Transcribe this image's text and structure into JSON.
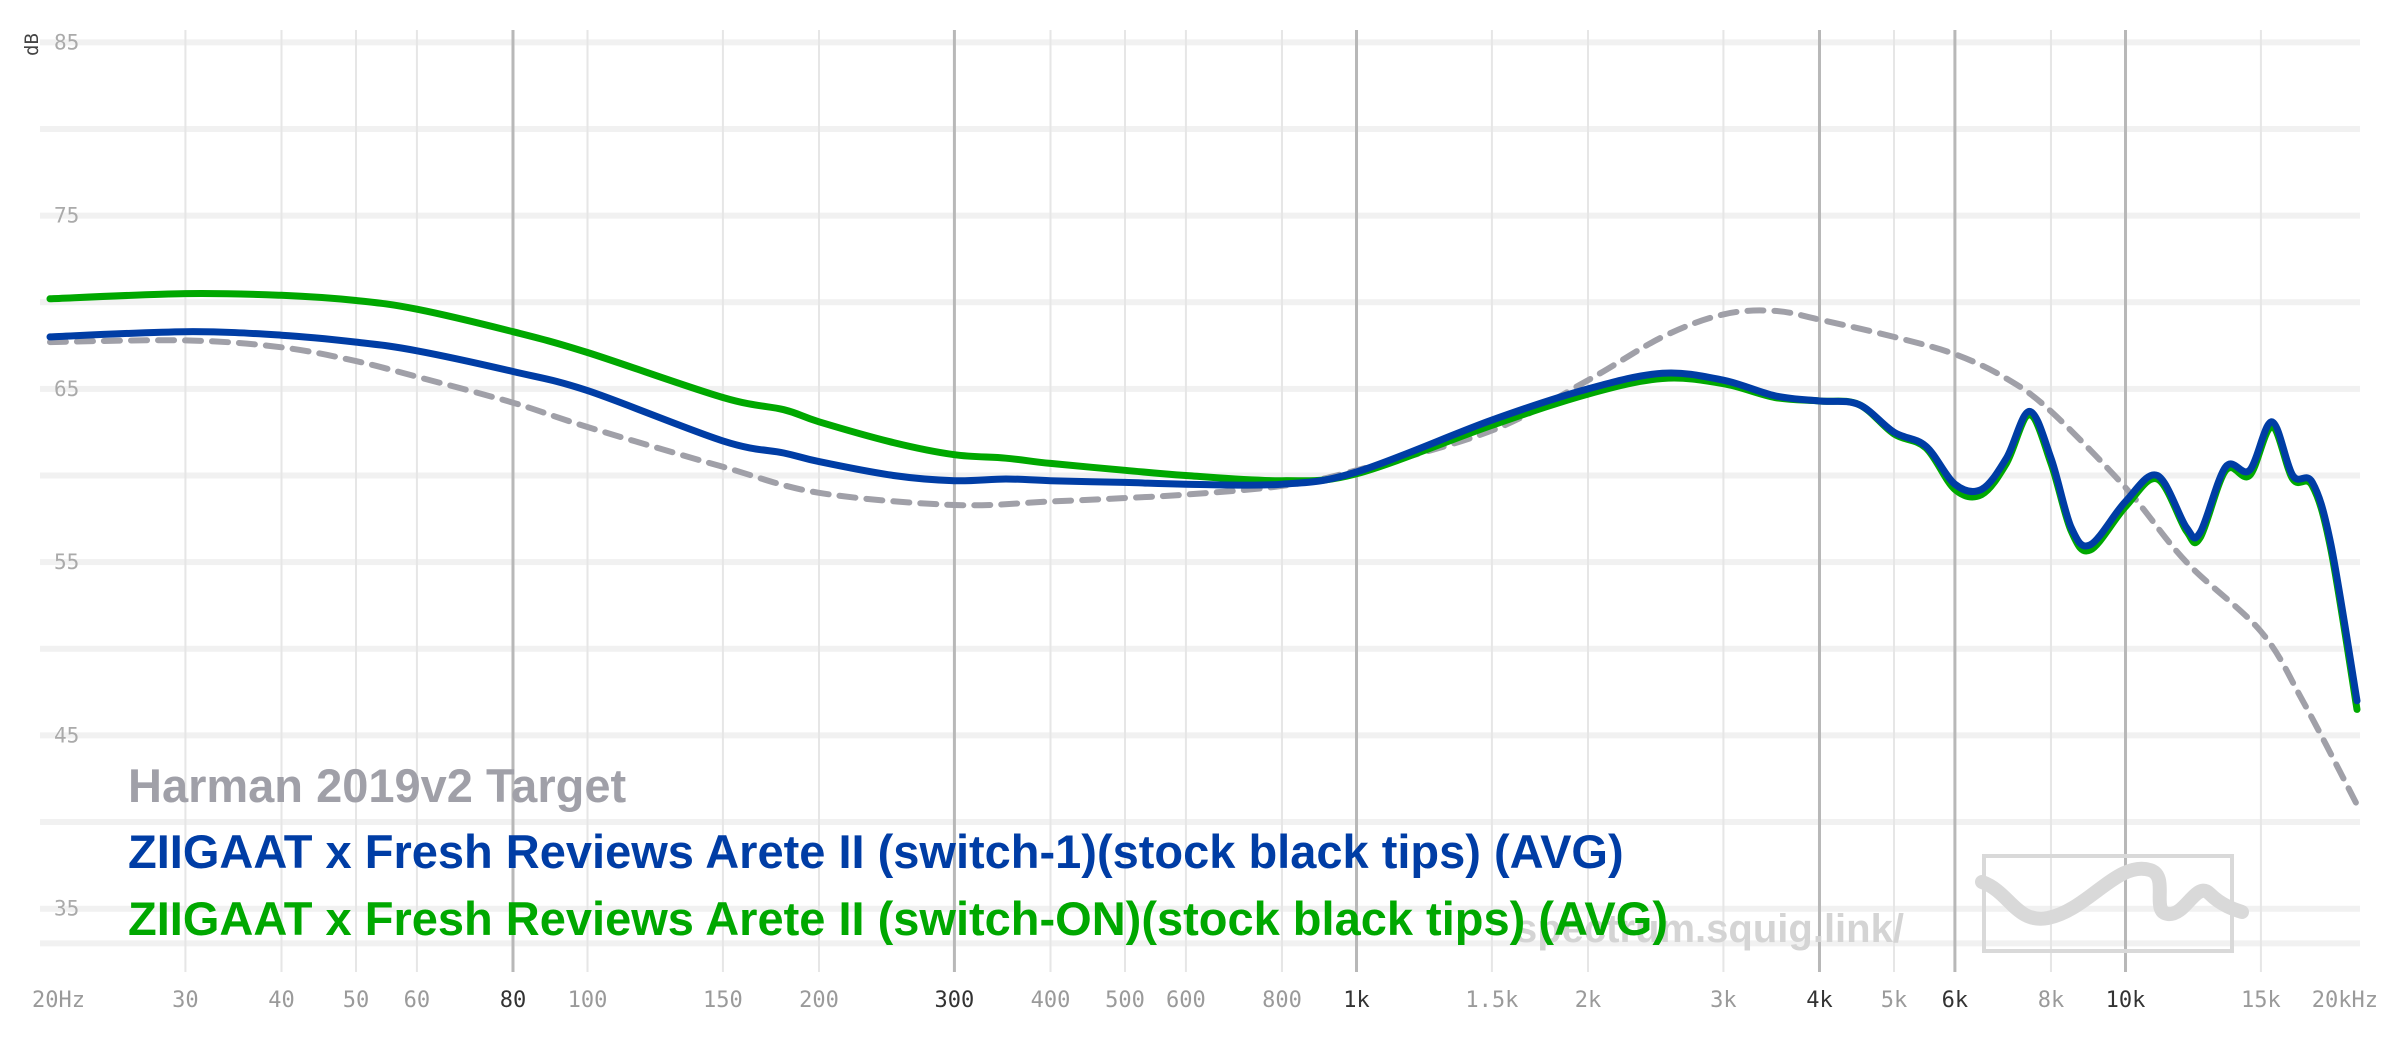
{
  "chart_data": {
    "type": "line",
    "x_scale": "log",
    "xlim": [
      20,
      20000
    ],
    "ylim": [
      31,
      86
    ],
    "ylabel": "dB",
    "y_ticks": [
      {
        "value": 85,
        "label": "85"
      },
      {
        "value": 75,
        "label": "75"
      },
      {
        "value": 65,
        "label": "65"
      },
      {
        "value": 55,
        "label": "55"
      },
      {
        "value": 45,
        "label": "45"
      },
      {
        "value": 35,
        "label": "35"
      }
    ],
    "y_minor_gridlines": [
      80,
      70,
      60,
      50,
      40,
      33
    ],
    "x_ticks": [
      {
        "value": 20,
        "label": "20Hz",
        "major": false
      },
      {
        "value": 30,
        "label": "30",
        "major": false
      },
      {
        "value": 40,
        "label": "40",
        "major": false
      },
      {
        "value": 50,
        "label": "50",
        "major": false
      },
      {
        "value": 60,
        "label": "60",
        "major": false
      },
      {
        "value": 80,
        "label": "80",
        "major": true
      },
      {
        "value": 100,
        "label": "100",
        "major": false
      },
      {
        "value": 150,
        "label": "150",
        "major": false
      },
      {
        "value": 200,
        "label": "200",
        "major": false
      },
      {
        "value": 300,
        "label": "300",
        "major": true
      },
      {
        "value": 400,
        "label": "400",
        "major": false
      },
      {
        "value": 500,
        "label": "500",
        "major": false
      },
      {
        "value": 600,
        "label": "600",
        "major": false
      },
      {
        "value": 800,
        "label": "800",
        "major": false
      },
      {
        "value": 1000,
        "label": "1k",
        "major": true
      },
      {
        "value": 1500,
        "label": "1.5k",
        "major": false
      },
      {
        "value": 2000,
        "label": "2k",
        "major": false
      },
      {
        "value": 3000,
        "label": "3k",
        "major": false
      },
      {
        "value": 4000,
        "label": "4k",
        "major": true
      },
      {
        "value": 5000,
        "label": "5k",
        "major": false
      },
      {
        "value": 6000,
        "label": "6k",
        "major": true
      },
      {
        "value": 8000,
        "label": "8k",
        "major": false
      },
      {
        "value": 10000,
        "label": "10k",
        "major": true
      },
      {
        "value": 15000,
        "label": "15k",
        "major": false
      },
      {
        "value": 20000,
        "label": "20kHz",
        "major": false
      }
    ],
    "grid": true,
    "legend_position": "bottom-left",
    "series": [
      {
        "name": "Harman 2019v2 Target",
        "color": "#a0a0a8",
        "dashed": true,
        "points": [
          [
            20,
            67.7
          ],
          [
            30,
            67.8
          ],
          [
            40,
            67.4
          ],
          [
            50,
            66.6
          ],
          [
            60,
            65.7
          ],
          [
            80,
            64.2
          ],
          [
            100,
            62.8
          ],
          [
            150,
            60.5
          ],
          [
            200,
            59.0
          ],
          [
            300,
            58.3
          ],
          [
            400,
            58.5
          ],
          [
            500,
            58.7
          ],
          [
            600,
            58.9
          ],
          [
            800,
            59.4
          ],
          [
            1000,
            60.3
          ],
          [
            1500,
            62.6
          ],
          [
            2000,
            65.5
          ],
          [
            2500,
            68.0
          ],
          [
            3000,
            69.3
          ],
          [
            3500,
            69.5
          ],
          [
            4000,
            69.0
          ],
          [
            5000,
            68.0
          ],
          [
            6000,
            67.0
          ],
          [
            7000,
            65.6
          ],
          [
            8000,
            63.7
          ],
          [
            10000,
            59.3
          ],
          [
            12000,
            55.0
          ],
          [
            15000,
            51.0
          ],
          [
            17000,
            47.0
          ],
          [
            20000,
            41.0
          ]
        ]
      },
      {
        "name": "ZIIGAAT x Fresh Reviews Arete II (switch-1)(stock black tips) (AVG)",
        "color": "#003da5",
        "dashed": false,
        "points": [
          [
            20,
            68.0
          ],
          [
            30,
            68.3
          ],
          [
            40,
            68.1
          ],
          [
            50,
            67.7
          ],
          [
            60,
            67.2
          ],
          [
            80,
            66.0
          ],
          [
            100,
            64.9
          ],
          [
            150,
            62.0
          ],
          [
            180,
            61.3
          ],
          [
            200,
            60.8
          ],
          [
            250,
            60.0
          ],
          [
            300,
            59.7
          ],
          [
            350,
            59.8
          ],
          [
            400,
            59.7
          ],
          [
            500,
            59.6
          ],
          [
            600,
            59.5
          ],
          [
            800,
            59.5
          ],
          [
            1000,
            60.2
          ],
          [
            1500,
            63.2
          ],
          [
            2000,
            65.0
          ],
          [
            2500,
            65.9
          ],
          [
            3000,
            65.5
          ],
          [
            3500,
            64.6
          ],
          [
            4000,
            64.3
          ],
          [
            4500,
            64.1
          ],
          [
            5000,
            62.5
          ],
          [
            5500,
            61.7
          ],
          [
            6000,
            59.5
          ],
          [
            6500,
            59.2
          ],
          [
            7000,
            61.0
          ],
          [
            7500,
            63.7
          ],
          [
            8000,
            61.0
          ],
          [
            8500,
            57.0
          ],
          [
            9000,
            56.0
          ],
          [
            10000,
            58.5
          ],
          [
            11000,
            60.0
          ],
          [
            12000,
            57.0
          ],
          [
            12500,
            56.7
          ],
          [
            13500,
            60.5
          ],
          [
            14500,
            60.3
          ],
          [
            15500,
            63.1
          ],
          [
            16500,
            60.0
          ],
          [
            17500,
            59.6
          ],
          [
            18500,
            56.0
          ],
          [
            20000,
            47.0
          ]
        ]
      },
      {
        "name": "ZIIGAAT x Fresh Reviews Arete II (switch-ON)(stock black tips) (AVG)",
        "color": "#00a800",
        "dashed": false,
        "points": [
          [
            20,
            70.2
          ],
          [
            30,
            70.5
          ],
          [
            40,
            70.4
          ],
          [
            50,
            70.1
          ],
          [
            60,
            69.6
          ],
          [
            80,
            68.3
          ],
          [
            100,
            67.1
          ],
          [
            150,
            64.5
          ],
          [
            180,
            63.8
          ],
          [
            200,
            63.1
          ],
          [
            250,
            61.9
          ],
          [
            300,
            61.2
          ],
          [
            350,
            61.0
          ],
          [
            400,
            60.7
          ],
          [
            500,
            60.3
          ],
          [
            600,
            60.0
          ],
          [
            800,
            59.7
          ],
          [
            1000,
            60.1
          ],
          [
            1500,
            62.9
          ],
          [
            2000,
            64.7
          ],
          [
            2500,
            65.6
          ],
          [
            3000,
            65.3
          ],
          [
            3500,
            64.5
          ],
          [
            4000,
            64.3
          ],
          [
            4500,
            64.1
          ],
          [
            5000,
            62.4
          ],
          [
            5500,
            61.6
          ],
          [
            6000,
            59.2
          ],
          [
            6500,
            58.9
          ],
          [
            7000,
            60.7
          ],
          [
            7500,
            63.5
          ],
          [
            8000,
            60.7
          ],
          [
            8500,
            56.8
          ],
          [
            9000,
            55.7
          ],
          [
            10000,
            58.2
          ],
          [
            11000,
            59.8
          ],
          [
            12000,
            56.8
          ],
          [
            12500,
            56.4
          ],
          [
            13500,
            60.3
          ],
          [
            14500,
            60.0
          ],
          [
            15500,
            62.8
          ],
          [
            16500,
            59.8
          ],
          [
            17500,
            59.4
          ],
          [
            18500,
            55.7
          ],
          [
            20000,
            46.5
          ]
        ]
      }
    ]
  },
  "watermark": {
    "text": "spectrum.squig.link/",
    "logo": "squiggle-logo-icon",
    "color": "#d4d4d4"
  }
}
